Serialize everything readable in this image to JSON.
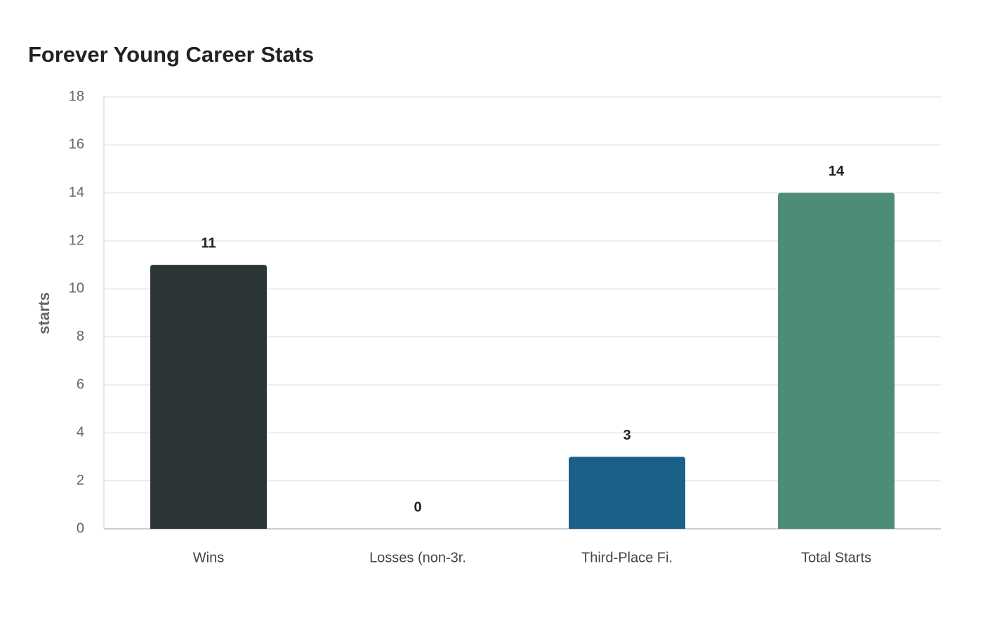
{
  "chart_data": {
    "type": "bar",
    "title": "Forever Young Career Stats",
    "ylabel": "starts",
    "categories": [
      "Wins",
      "Losses (non-3r.",
      "Third-Place Fi.",
      "Total Starts"
    ],
    "values": [
      11,
      0,
      3,
      14
    ],
    "colors": [
      "#2d3636",
      "#c0504d",
      "#1a6088",
      "#4e8c7a"
    ],
    "ylim": [
      0,
      18
    ],
    "yticks": [
      0,
      2,
      4,
      6,
      8,
      10,
      12,
      14,
      16,
      18
    ],
    "grid": true
  }
}
